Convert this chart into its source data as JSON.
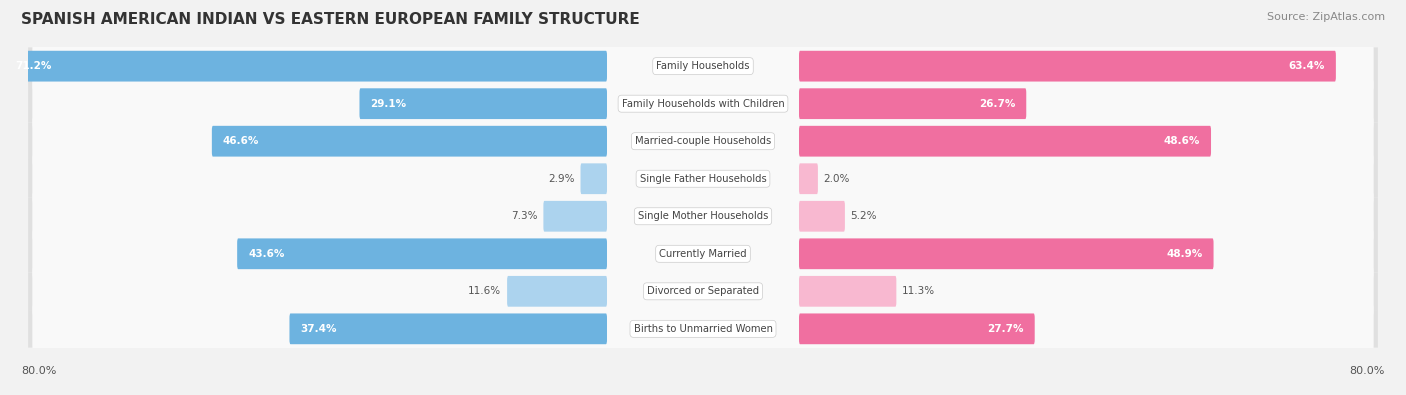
{
  "title": "SPANISH AMERICAN INDIAN VS EASTERN EUROPEAN FAMILY STRUCTURE",
  "source": "Source: ZipAtlas.com",
  "categories": [
    "Family Households",
    "Family Households with Children",
    "Married-couple Households",
    "Single Father Households",
    "Single Mother Households",
    "Currently Married",
    "Divorced or Separated",
    "Births to Unmarried Women"
  ],
  "left_values": [
    71.2,
    29.1,
    46.6,
    2.9,
    7.3,
    43.6,
    11.6,
    37.4
  ],
  "right_values": [
    63.4,
    26.7,
    48.6,
    2.0,
    5.2,
    48.9,
    11.3,
    27.7
  ],
  "left_color": "#6db3e0",
  "right_color": "#f06fa0",
  "left_color_light": "#acd3ee",
  "right_color_light": "#f8b8d0",
  "max_value": 80.0,
  "left_label": "Spanish American Indian",
  "right_label": "Eastern European",
  "axis_label": "80.0%",
  "background_color": "#f2f2f2",
  "row_bg_color": "#e0e0e0",
  "row_white_color": "#f9f9f9",
  "title_fontsize": 11,
  "source_fontsize": 8,
  "bar_height": 0.58,
  "label_threshold": 15
}
